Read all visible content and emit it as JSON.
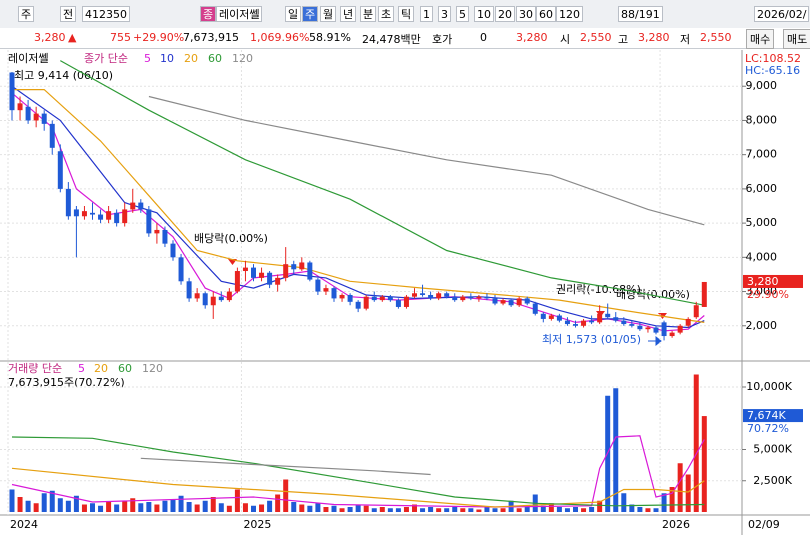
{
  "toolbar": {
    "items": [
      "주",
      "전",
      "412350",
      "종",
      "레이저쎌",
      "일",
      "주",
      "월",
      "년",
      "분",
      "초",
      "틱",
      "1",
      "3",
      "5",
      "10",
      "20",
      "30",
      "60",
      "120",
      "88/191",
      "2026/02/"
    ]
  },
  "quote": {
    "price": "3,280",
    "change": "755",
    "rate": "+29.90%",
    "volume": "7,673,915",
    "volume_rate": "1,069.96%",
    "turnover": "58.91%",
    "amount": "24,478백만",
    "hoga_label": "호가",
    "hoga": "0",
    "hoga_price": "3,280",
    "open_label": "시",
    "open": "2,550",
    "high_label": "고",
    "high": "3,280",
    "low_label": "저",
    "low": "2,550",
    "buy": "매수",
    "sell": "매도"
  },
  "chart_data": {
    "type": "candlestick",
    "name": "레이저쎌",
    "legend_prefix": "종가 단순",
    "up_color": "#e8231f",
    "down_color": "#1f5ad6",
    "grid": true,
    "ylim": [
      1000,
      10000
    ],
    "yticks": [
      {
        "value": 2000,
        "label": "2,000"
      },
      {
        "value": 3000,
        "label": "3,000"
      },
      {
        "value": 4000,
        "label": "4,000"
      },
      {
        "value": 5000,
        "label": "5,000"
      },
      {
        "value": 6000,
        "label": "6,000"
      },
      {
        "value": 7000,
        "label": "7,000"
      },
      {
        "value": 8000,
        "label": "8,000"
      },
      {
        "value": 9000,
        "label": "9,000"
      }
    ],
    "candles": {
      "open": [
        9400,
        8300,
        8400,
        8000,
        8200,
        7900,
        7100,
        6000,
        5400,
        5200,
        5300,
        5250,
        5100,
        5300,
        5000,
        5400,
        5600,
        5400,
        4700,
        4800,
        4400,
        4000,
        3300,
        2800,
        2950,
        2600,
        2850,
        2750,
        3000,
        3600,
        3700,
        3400,
        3550,
        3200,
        3400,
        3800,
        3650,
        3850,
        3350,
        3000,
        3100,
        2800,
        2900,
        2700,
        2500,
        2850,
        2750,
        2850,
        2750,
        2550,
        2850,
        2950,
        2900,
        2800,
        2950,
        2850,
        2750,
        2850,
        2800,
        2850,
        2800,
        2650,
        2750,
        2600,
        2800,
        2650,
        2350,
        2200,
        2300,
        2150,
        2050,
        2000,
        2150,
        2100,
        2350,
        2250,
        2150,
        2050,
        2000,
        1900,
        1950,
        2100,
        1700,
        1800,
        2000,
        2250,
        2550
      ],
      "high": [
        9414,
        8700,
        8600,
        8400,
        8300,
        8000,
        7300,
        6200,
        5500,
        5500,
        5600,
        5400,
        5500,
        5400,
        5600,
        6000,
        5700,
        5500,
        5000,
        4900,
        4500,
        4100,
        3400,
        3100,
        3000,
        3000,
        3000,
        3100,
        3700,
        3900,
        3800,
        3700,
        3600,
        3500,
        4300,
        3900,
        4000,
        3900,
        3400,
        3200,
        3150,
        2950,
        2950,
        2750,
        2900,
        3000,
        2900,
        2900,
        2800,
        2900,
        3100,
        3200,
        3000,
        3000,
        3000,
        2950,
        2900,
        2950,
        2900,
        2950,
        2900,
        2800,
        2800,
        2850,
        2850,
        2700,
        2400,
        2350,
        2350,
        2250,
        2150,
        2200,
        2300,
        2600,
        2650,
        2400,
        2250,
        2150,
        2100,
        2000,
        2000,
        2150,
        1850,
        2050,
        2250,
        2700,
        3280
      ],
      "low": [
        8000,
        8000,
        7900,
        7800,
        7700,
        7000,
        5900,
        5100,
        4000,
        5100,
        5100,
        5000,
        5000,
        4900,
        4900,
        5300,
        5300,
        4600,
        4400,
        4300,
        3900,
        3200,
        2700,
        2700,
        2500,
        2200,
        2700,
        2700,
        2950,
        3300,
        3300,
        3300,
        3100,
        3000,
        3300,
        3500,
        3600,
        3300,
        2900,
        2900,
        2700,
        2700,
        2600,
        2400,
        2450,
        2700,
        2700,
        2700,
        2500,
        2500,
        2800,
        2850,
        2750,
        2750,
        2800,
        2700,
        2700,
        2750,
        2700,
        2750,
        2600,
        2600,
        2550,
        2550,
        2600,
        2300,
        2100,
        2150,
        2100,
        2000,
        1950,
        1950,
        2050,
        2050,
        2200,
        2100,
        2000,
        1950,
        1850,
        1800,
        1750,
        1573,
        1650,
        1750,
        1950,
        2200,
        2550
      ],
      "close": [
        8300,
        8500,
        8000,
        8200,
        7900,
        7200,
        6000,
        5200,
        5200,
        5350,
        5250,
        5100,
        5350,
        5000,
        5400,
        5600,
        5400,
        4700,
        4800,
        4400,
        4000,
        3300,
        2800,
        2950,
        2600,
        2850,
        2750,
        3000,
        3600,
        3700,
        3400,
        3550,
        3200,
        3400,
        3800,
        3650,
        3850,
        3350,
        3000,
        3100,
        2800,
        2900,
        2700,
        2500,
        2850,
        2750,
        2850,
        2750,
        2550,
        2850,
        2950,
        2900,
        2800,
        2950,
        2850,
        2750,
        2850,
        2800,
        2850,
        2800,
        2650,
        2750,
        2600,
        2800,
        2650,
        2350,
        2200,
        2300,
        2150,
        2050,
        2000,
        2150,
        2100,
        2350,
        2250,
        2150,
        2050,
        2000,
        1900,
        1950,
        1800,
        1700,
        1800,
        2000,
        2200,
        2600,
        3280
      ]
    },
    "ma": [
      {
        "name": "5",
        "color": "#d81ad8",
        "x": [
          0,
          5,
          8,
          12,
          16,
          20,
          24,
          27,
          30,
          34,
          37,
          42,
          48,
          55,
          62,
          66,
          70,
          74,
          78,
          81,
          84,
          86
        ],
        "values": [
          8800,
          7800,
          6000,
          5250,
          5400,
          4600,
          3100,
          2800,
          3400,
          3500,
          3600,
          2850,
          2750,
          2850,
          2700,
          2400,
          2100,
          2200,
          2050,
          1850,
          1900,
          2300
        ]
      },
      {
        "name": "10",
        "color": "#2233cc",
        "x": [
          0,
          6,
          10,
          14,
          18,
          22,
          26,
          30,
          35,
          39,
          44,
          50,
          58,
          64,
          68,
          72,
          76,
          80,
          84,
          86
        ],
        "values": [
          9000,
          8000,
          6800,
          5600,
          5300,
          4300,
          3300,
          3100,
          3500,
          3400,
          2900,
          2800,
          2850,
          2750,
          2450,
          2200,
          2200,
          2000,
          1950,
          2150
        ]
      },
      {
        "name": "20",
        "color": "#e6a010",
        "x": [
          0,
          4,
          11,
          17,
          23,
          28,
          36,
          42,
          51,
          61,
          68,
          76,
          83,
          86
        ],
        "values": [
          8900,
          8900,
          7400,
          5800,
          4200,
          3900,
          3700,
          3300,
          3100,
          2900,
          2750,
          2450,
          2200,
          2100
        ]
      },
      {
        "name": "60",
        "color": "#2e9a36",
        "x": [
          6,
          17,
          29,
          42,
          54,
          67,
          76,
          86
        ],
        "values": [
          9750,
          8300,
          6850,
          5700,
          4200,
          3400,
          3050,
          2600
        ]
      },
      {
        "name": "120",
        "color": "#8a8a8a",
        "x": [
          17,
          29,
          42,
          54,
          67,
          79,
          86
        ],
        "values": [
          8700,
          8000,
          7400,
          6850,
          6400,
          5400,
          4950
        ]
      }
    ],
    "annotations": [
      "최고 9,414 (06/10)",
      "배당락(0.00%)",
      "권리락(-10.68%)",
      "배당락(0.00%)",
      "최저 1,573 (01/05)"
    ],
    "lc": "LC:108.52",
    "hc": "HC:-65.16",
    "last_label": "3,280",
    "last_rate": "29.90%",
    "xticks": [
      {
        "value": 0,
        "label": "2024"
      },
      {
        "value": 29,
        "label": "2025"
      },
      {
        "value": 81,
        "label": "2026"
      }
    ],
    "cursor_date": "02/09",
    "volume": {
      "legend_prefix": "거래량 단순",
      "info": "7,673,915주(70.72%)",
      "last_label": "7,674K",
      "last_rate": "70.72%",
      "ylim": [
        0,
        12000
      ],
      "yticks": [
        {
          "value": 2500,
          "label": "2,500K"
        },
        {
          "value": 5000,
          "label": "5,000K"
        },
        {
          "value": 10000,
          "label": "10,000K"
        }
      ],
      "values": [
        1800,
        1200,
        900,
        700,
        1500,
        1700,
        1100,
        900,
        1300,
        600,
        700,
        500,
        800,
        600,
        900,
        1100,
        700,
        800,
        600,
        900,
        1000,
        1300,
        800,
        600,
        900,
        1200,
        700,
        500,
        1800,
        700,
        500,
        600,
        900,
        1400,
        2600,
        800,
        600,
        500,
        700,
        400,
        500,
        300,
        400,
        600,
        500,
        300,
        400,
        300,
        300,
        400,
        600,
        300,
        400,
        300,
        300,
        400,
        300,
        300,
        200,
        400,
        300,
        300,
        900,
        300,
        400,
        1400,
        500,
        700,
        400,
        300,
        400,
        300,
        400,
        900,
        9300,
        9900,
        1500,
        600,
        400,
        300,
        300,
        1500,
        2000,
        3900,
        3000,
        11000,
        7674
      ],
      "ma": [
        {
          "name": "5",
          "color": "#d81ad8",
          "x": [
            0,
            10,
            30,
            40,
            60,
            72,
            73,
            75,
            78,
            80,
            82,
            84,
            86
          ],
          "values": [
            2200,
            800,
            1200,
            600,
            400,
            500,
            3500,
            6000,
            6100,
            1200,
            1500,
            3500,
            5800
          ]
        },
        {
          "name": "20",
          "color": "#e6a010",
          "x": [
            0,
            20,
            40,
            60,
            73,
            76,
            80,
            84,
            86
          ],
          "values": [
            3500,
            2200,
            1400,
            400,
            800,
            1800,
            1800,
            1600,
            2500
          ]
        },
        {
          "name": "60",
          "color": "#2e9a36",
          "x": [
            0,
            10,
            20,
            30,
            45,
            55,
            65,
            75,
            86
          ],
          "values": [
            6000,
            5900,
            4800,
            3900,
            2300,
            1200,
            700,
            500,
            600
          ]
        },
        {
          "name": "120",
          "color": "#8a8a8a",
          "x": [
            16,
            30,
            45,
            52
          ],
          "values": [
            4300,
            3800,
            3300,
            3000
          ]
        }
      ]
    }
  }
}
